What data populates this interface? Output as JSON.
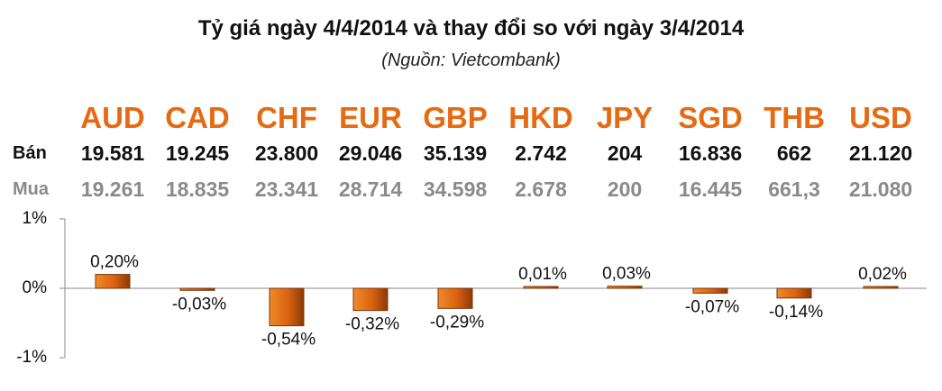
{
  "header": {
    "title": "Tỷ giá ngày 4/4/2014 và thay đổi so với ngày 3/4/2014",
    "source": "(Nguồn: Vietcombank)"
  },
  "table": {
    "sell_label": "Bán",
    "buy_label": "Mua",
    "currencies": [
      "AUD",
      "CAD",
      "CHF",
      "EUR",
      "GBP",
      "HKD",
      "JPY",
      "SGD",
      "THB",
      "USD"
    ],
    "sell": [
      "19.581",
      "19.245",
      "23.800",
      "29.046",
      "35.139",
      "2.742",
      "204",
      "16.836",
      "662",
      "21.120"
    ],
    "buy": [
      "19.261",
      "18.835",
      "23.341",
      "28.714",
      "34.598",
      "2.678",
      "200",
      "16.445",
      "661,3",
      "21.080"
    ]
  },
  "chart_data": {
    "type": "bar",
    "categories": [
      "AUD",
      "CAD",
      "CHF",
      "EUR",
      "GBP",
      "HKD",
      "JPY",
      "SGD",
      "THB",
      "USD"
    ],
    "values": [
      0.2,
      -0.03,
      -0.54,
      -0.32,
      -0.29,
      0.01,
      0.03,
      -0.07,
      -0.14,
      0.02
    ],
    "labels": [
      "0,20%",
      "-0,03%",
      "-0,54%",
      "-0,32%",
      "-0,29%",
      "0,01%",
      "0,03%",
      "-0,07%",
      "-0,14%",
      "0,02%"
    ],
    "ylim": [
      -1,
      1
    ],
    "yticks": [
      "1%",
      "0%",
      "-1%"
    ],
    "bar_color": "#e0701a",
    "bar_color_dark": "#7a3408",
    "grid": false
  }
}
